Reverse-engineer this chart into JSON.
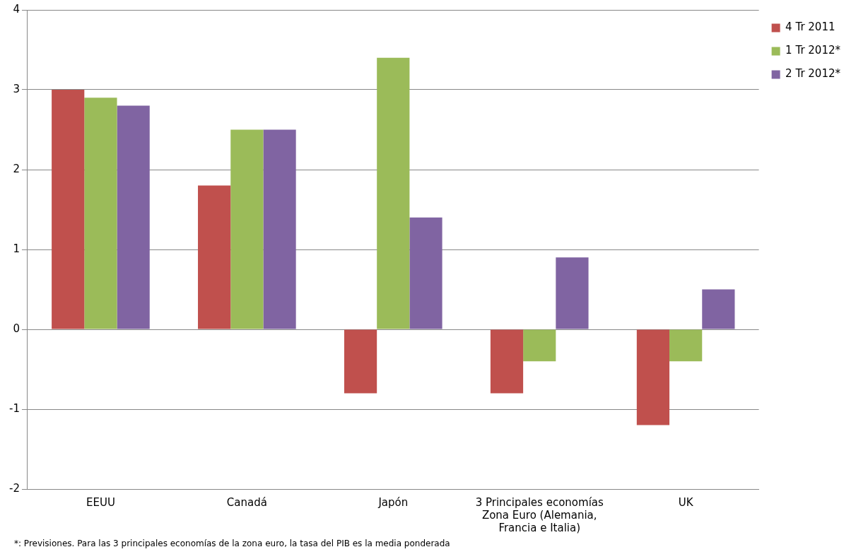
{
  "chart_data": {
    "type": "bar",
    "categories": [
      "EEUU",
      "Canadá",
      "Japón",
      "3 Principales economías Zona Euro (Alemania, Francia e Italia)",
      "UK"
    ],
    "series": [
      {
        "name": "4 Tr 2011",
        "color": "#c0504d",
        "values": [
          3,
          1.8,
          -0.8,
          -0.8,
          -1.2
        ]
      },
      {
        "name": "1 Tr 2012*",
        "color": "#9bbb59",
        "values": [
          2.9,
          2.5,
          3.4,
          -0.4,
          -0.4
        ]
      },
      {
        "name": "2 Tr 2012*",
        "color": "#8064a2",
        "values": [
          2.8,
          2.5,
          1.4,
          0.9,
          0.5
        ]
      }
    ],
    "ylim": [
      -2,
      4
    ],
    "yticks": [
      -2,
      -1,
      0,
      1,
      2,
      3,
      4
    ],
    "grid": "y",
    "legend": "right",
    "annotations": [
      "*: Previsiones. Para las 3 principales economías de la zona euro, la tasa del PIB es la media ponderada"
    ]
  }
}
